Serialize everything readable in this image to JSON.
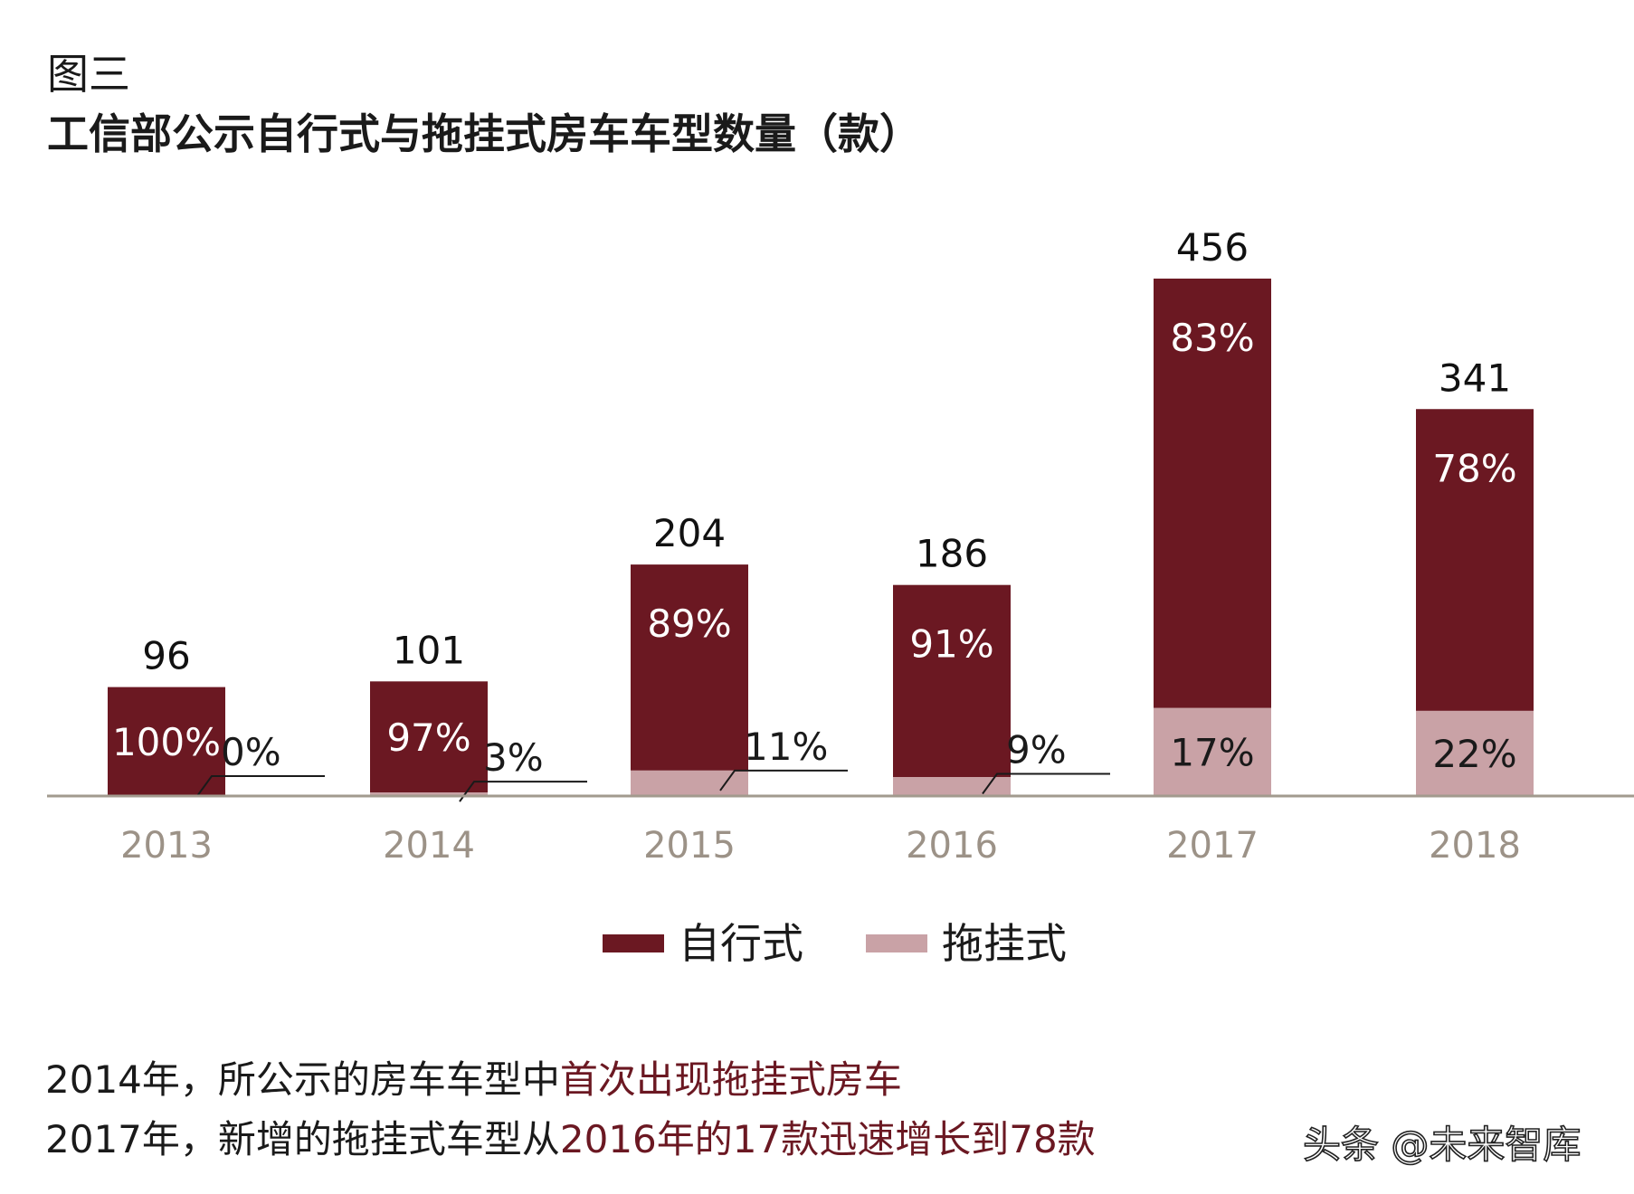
{
  "figure_label": "图三",
  "title": "工信部公示自行式与拖挂式房车车型数量（款）",
  "colors": {
    "self_propelled": "#6b1822",
    "towable": "#c9a2a6",
    "axis": "#a29a8e",
    "year_label": "#9c9287",
    "highlight": "#6b1822"
  },
  "chart_data": {
    "type": "bar",
    "stacked": true,
    "categories": [
      "2013",
      "2014",
      "2015",
      "2016",
      "2017",
      "2018"
    ],
    "totals": [
      "96",
      "101",
      "204",
      "186",
      "456",
      "341"
    ],
    "total_values": [
      96,
      101,
      204,
      186,
      456,
      341
    ],
    "series": [
      {
        "name": "自行式",
        "share": [
          1.0,
          0.97,
          0.89,
          0.91,
          0.83,
          0.78
        ],
        "labels": [
          "100%",
          "97%",
          "89%",
          "91%",
          "83%",
          "78%"
        ]
      },
      {
        "name": "拖挂式",
        "share": [
          0.0,
          0.03,
          0.11,
          0.09,
          0.17,
          0.22
        ],
        "labels": [
          "0%",
          "3%",
          "11%",
          "9%",
          "17%",
          "22%"
        ]
      }
    ],
    "grid": false,
    "legend_position": "bottom-center"
  },
  "notes": [
    {
      "plain": "2014年，所公示的房车车型中",
      "highlight": "首次出现拖挂式房车"
    },
    {
      "plain": "2017年，新增的拖挂式车型从",
      "highlight": "2016年的17款迅速增长到78款"
    }
  ],
  "watermark": "头条 @未来智库"
}
